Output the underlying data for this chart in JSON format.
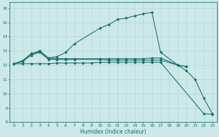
{
  "xlabel": "Humidex (Indice chaleur)",
  "bg_color": "#cce8e8",
  "grid_color": "#b8d8d8",
  "line_color": "#1a6e6e",
  "xlim": [
    -0.5,
    23.5
  ],
  "ylim": [
    8,
    16.4
  ],
  "yticks": [
    8,
    9,
    10,
    11,
    12,
    13,
    14,
    15,
    16
  ],
  "xticks": [
    0,
    1,
    2,
    3,
    4,
    5,
    6,
    7,
    8,
    9,
    10,
    11,
    12,
    13,
    14,
    15,
    16,
    17,
    18,
    19,
    20,
    21,
    22,
    23
  ],
  "line1_x": [
    0,
    1,
    2,
    3,
    4,
    5,
    6,
    7,
    10,
    11,
    12,
    13,
    14,
    15,
    16,
    17,
    19,
    20,
    21,
    22,
    23
  ],
  "line1_y": [
    12.1,
    12.3,
    12.8,
    13.0,
    12.5,
    12.6,
    12.9,
    13.5,
    14.6,
    14.85,
    15.2,
    15.3,
    15.45,
    15.6,
    15.7,
    12.9,
    12.0,
    11.6,
    11.0,
    9.7,
    8.6
  ],
  "line2_x": [
    0,
    1,
    2,
    3,
    4,
    5,
    6,
    7,
    10,
    11,
    12,
    13,
    14,
    15,
    16,
    17,
    19,
    20
  ],
  "line2_y": [
    12.1,
    12.3,
    12.8,
    12.95,
    12.5,
    12.45,
    12.45,
    12.45,
    12.45,
    12.45,
    12.45,
    12.45,
    12.45,
    12.45,
    12.5,
    12.5,
    12.0,
    11.9
  ],
  "line3_x": [
    0,
    1,
    2,
    3,
    4,
    5,
    6,
    7,
    10,
    11,
    12,
    13,
    14,
    15,
    16,
    17,
    19,
    20
  ],
  "line3_y": [
    12.1,
    12.25,
    12.7,
    12.9,
    12.4,
    12.4,
    12.4,
    12.4,
    12.4,
    12.35,
    12.35,
    12.35,
    12.35,
    12.35,
    12.35,
    12.35,
    12.0,
    11.9
  ],
  "line4_x": [
    0,
    1,
    2,
    3,
    4,
    5,
    6,
    7,
    8,
    9,
    10,
    11,
    12,
    13,
    14,
    15,
    16,
    17,
    22,
    23
  ],
  "line4_y": [
    12.1,
    12.1,
    12.1,
    12.1,
    12.1,
    12.15,
    12.15,
    12.15,
    12.15,
    12.15,
    12.2,
    12.2,
    12.2,
    12.2,
    12.2,
    12.2,
    12.2,
    12.2,
    8.6,
    8.55
  ]
}
